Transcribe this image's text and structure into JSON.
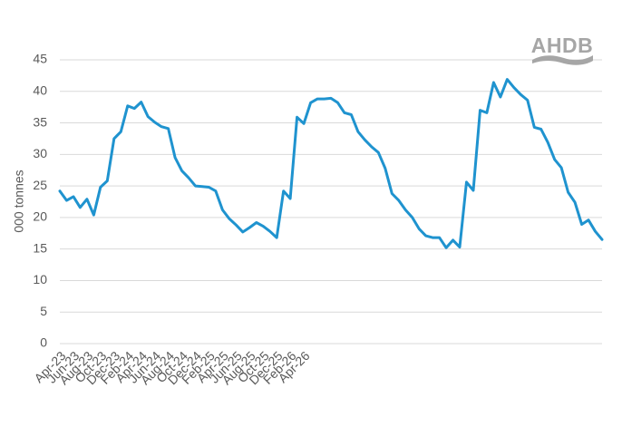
{
  "logo": {
    "text": "AHDB",
    "color": "#a6a6a6"
  },
  "chart_data": {
    "type": "line",
    "title": "",
    "xlabel": "",
    "ylabel": "000 tonnes",
    "ylim": [
      0,
      45
    ],
    "yticks": [
      0,
      5,
      10,
      15,
      20,
      25,
      30,
      35,
      40,
      45
    ],
    "grid": true,
    "legend": "none",
    "line_color": "#1f93cf",
    "grid_color": "#d9d9d9",
    "xtick_labels": [
      "Apr-23",
      "Jun-23",
      "Aug-23",
      "Oct-23",
      "Dec-23",
      "Feb-24",
      "Apr-24",
      "Jun-24",
      "Aug-24",
      "Oct-24",
      "Dec-24",
      "Feb-25",
      "Apr-25",
      "Jun-25",
      "Aug-25",
      "Oct-25",
      "Dec-25",
      "Feb-26",
      "Apr-26"
    ],
    "series": [
      {
        "values": [
          24.2,
          22.7,
          23.3,
          21.6,
          22.9,
          20.4,
          24.8,
          25.8,
          32.5,
          33.6,
          37.7,
          37.3,
          38.3,
          36.0,
          35.1,
          34.4,
          34.1,
          29.5,
          27.4,
          26.3,
          25.0,
          24.9,
          24.8,
          24.2,
          21.2,
          19.8,
          18.8,
          17.7,
          18.4,
          19.2,
          18.6,
          17.8,
          16.8,
          24.2,
          23.0,
          35.9,
          34.9,
          38.2,
          38.8,
          38.8,
          38.9,
          38.2,
          36.6,
          36.3,
          33.6,
          32.3,
          31.2,
          30.3,
          27.8,
          23.8,
          22.7,
          21.2,
          20.0,
          18.2,
          17.1,
          16.8,
          16.8,
          15.2,
          16.4,
          15.3,
          25.6,
          24.3,
          37.0,
          36.6,
          41.4,
          39.1,
          41.9,
          40.6,
          39.5,
          38.6,
          34.3,
          34.0,
          31.9,
          29.2,
          27.9,
          24.0,
          22.4,
          18.9,
          19.6,
          17.8,
          16.5
        ]
      }
    ]
  }
}
